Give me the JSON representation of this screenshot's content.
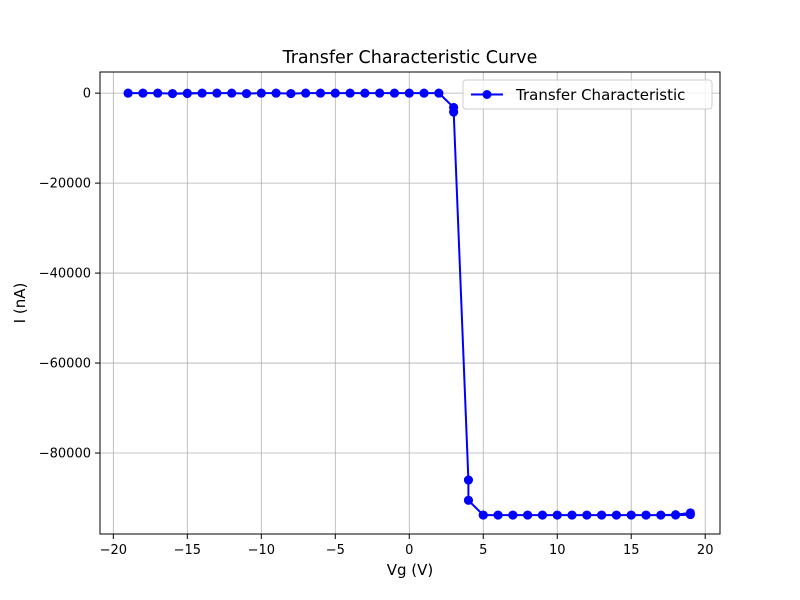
{
  "chart_data": {
    "type": "line",
    "title": "Transfer Characteristic Curve",
    "xlabel": "Vg (V)",
    "ylabel": "I (nA)",
    "xlim": [
      -20.9,
      21
    ],
    "ylim": [
      -98000,
      4700
    ],
    "xticks": [
      -20,
      -15,
      -10,
      -5,
      0,
      5,
      10,
      15,
      20
    ],
    "xtick_labels": [
      "−20",
      "−15",
      "−10",
      "−5",
      "0",
      "5",
      "10",
      "15",
      "20"
    ],
    "yticks": [
      0,
      -20000,
      -40000,
      -60000,
      -80000
    ],
    "ytick_labels": [
      "0",
      "−20000",
      "−40000",
      "−60000",
      "−80000"
    ],
    "grid": true,
    "legend_position": "top-right",
    "color": "#0000ff",
    "series": [
      {
        "name": "Transfer Characteristic",
        "x": [
          -19,
          -18,
          -17,
          -16,
          -15,
          -14,
          -13,
          -12,
          -11,
          -10,
          -9,
          -8,
          -7,
          -6,
          -5,
          -4,
          -3,
          -2,
          -1,
          0,
          1,
          2,
          3,
          3,
          4,
          4,
          5,
          6,
          7,
          8,
          9,
          10,
          11,
          12,
          13,
          14,
          15,
          16,
          17,
          18,
          19,
          19,
          18,
          17,
          16,
          15,
          14,
          13,
          12,
          11,
          10,
          9,
          8,
          7,
          6,
          5,
          4,
          4,
          3,
          3,
          2,
          1,
          0,
          -1,
          -2,
          -3,
          -4,
          -5,
          -6,
          -7,
          -8,
          -9,
          -10,
          -11,
          -12,
          -13,
          -14,
          -15,
          -16,
          -17,
          -18,
          -19
        ],
        "y": [
          0,
          0,
          0,
          -100,
          0,
          0,
          0,
          0,
          -100,
          0,
          0,
          -100,
          0,
          0,
          0,
          0,
          0,
          0,
          0,
          0,
          0,
          0,
          -3200,
          -4200,
          -86000,
          -90500,
          -93800,
          -93800,
          -93800,
          -93800,
          -93800,
          -93800,
          -93800,
          -93800,
          -93800,
          -93800,
          -93800,
          -93800,
          -93800,
          -93800,
          -93700,
          -93300,
          -93700,
          -93800,
          -93800,
          -93800,
          -93800,
          -93800,
          -93800,
          -93800,
          -93800,
          -93800,
          -93800,
          -93800,
          -93800,
          -93800,
          -90500,
          -86000,
          -4200,
          -3200,
          0,
          0,
          0,
          0,
          0,
          0,
          0,
          0,
          0,
          0,
          -100,
          0,
          0,
          -100,
          0,
          0,
          0,
          -100,
          -100,
          0,
          0,
          0
        ]
      }
    ]
  }
}
